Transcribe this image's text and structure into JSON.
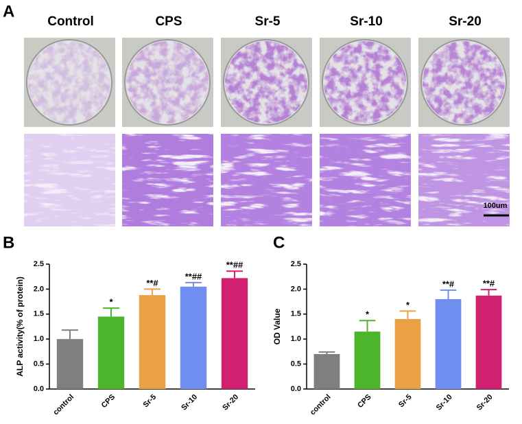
{
  "panel_labels": [
    "A",
    "B",
    "C"
  ],
  "columns": [
    "Control",
    "CPS",
    "Sr-5",
    "Sr-10",
    "Sr-20"
  ],
  "scale_bar": "100um",
  "chart_data": [
    {
      "type": "bar",
      "ylabel": "ALP activity(% of protein)",
      "categories": [
        "control",
        "CPS",
        "Sr-5",
        "Sr-10",
        "Sr-20"
      ],
      "values": [
        1.0,
        1.45,
        1.88,
        2.05,
        2.22
      ],
      "errors": [
        0.18,
        0.17,
        0.12,
        0.08,
        0.14
      ],
      "annotations": [
        null,
        "*",
        "**#",
        "**##",
        "**##"
      ],
      "colors": [
        "#7f7f7f",
        "#4db52b",
        "#e9a143",
        "#6f8ef0",
        "#d0206f"
      ],
      "ylim": [
        0,
        2.5
      ],
      "yticks": [
        {
          "value": 0,
          "label": "0.0"
        },
        {
          "value": 0.5,
          "label": "0.5"
        },
        {
          "value": 1,
          "label": "1.0"
        },
        {
          "value": 1.5,
          "label": "1.5"
        },
        {
          "value": 2,
          "label": "2.0"
        },
        {
          "value": 2.5,
          "label": "2.5"
        }
      ]
    },
    {
      "type": "bar",
      "ylabel": "OD Value",
      "categories": [
        "control",
        "CPS",
        "Sr-5",
        "Sr-10",
        "Sr-20"
      ],
      "values": [
        0.7,
        1.15,
        1.4,
        1.8,
        1.87
      ],
      "errors": [
        0.04,
        0.22,
        0.16,
        0.18,
        0.12
      ],
      "annotations": [
        null,
        "*",
        "*",
        "**#",
        "**#"
      ],
      "colors": [
        "#7f7f7f",
        "#4db52b",
        "#e9a143",
        "#6f8ef0",
        "#d0206f"
      ],
      "ylim": [
        0,
        2.5
      ],
      "yticks": [
        {
          "value": 0,
          "label": "0.0"
        },
        {
          "value": 0.5,
          "label": "0.5"
        },
        {
          "value": 1,
          "label": "1.0"
        },
        {
          "value": 1.5,
          "label": "1.5"
        },
        {
          "value": 2,
          "label": "2.0"
        },
        {
          "value": 2.5,
          "label": "2.5"
        }
      ]
    }
  ]
}
